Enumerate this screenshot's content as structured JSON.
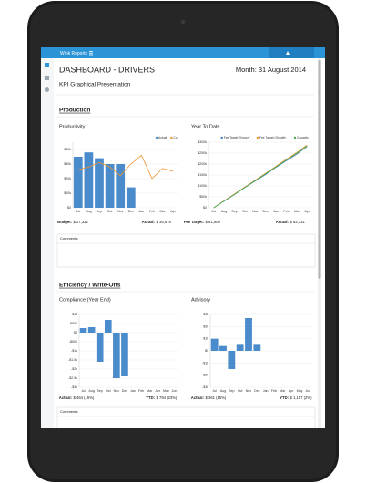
{
  "app": {
    "name": "Wink Reports"
  },
  "header": {
    "title": "DASHBOARD - DRIVERS",
    "month": "Month: 31 August 2014",
    "subtitle": "KPI Graphical Presentation"
  },
  "sections": [
    "Production",
    "Efficiency / Write-Offs"
  ],
  "comments_label": "Comments:",
  "chart_data": [
    {
      "type": "bar",
      "title": "Productivity",
      "categories": [
        "Jul",
        "Aug",
        "Sep",
        "Oct",
        "Nov",
        "Dec",
        "Jan",
        "Feb",
        "Mar",
        "Apr"
      ],
      "series": [
        {
          "name": "Actual",
          "color": "#4a8ccb",
          "kind": "bar",
          "values": [
            35000,
            38000,
            34000,
            30000,
            30000,
            14000,
            null,
            null,
            null,
            null
          ]
        },
        {
          "name": "Co",
          "color": "#f0922e",
          "kind": "line",
          "values": [
            26000,
            28000,
            31000,
            28000,
            22000,
            30000,
            36000,
            20000,
            27000,
            25000
          ]
        }
      ],
      "ylim": [
        0,
        45000
      ],
      "yticks": [
        {
          "value": 0,
          "label": "$0"
        },
        {
          "value": 10000,
          "label": "$10k"
        },
        {
          "value": 20000,
          "label": "$20k"
        },
        {
          "value": 30000,
          "label": "$30k"
        },
        {
          "value": 40000,
          "label": "$40k"
        }
      ],
      "grid": true,
      "legend": "top-right",
      "footer": [
        {
          "label": "Budget:",
          "value": "$ 27,332"
        },
        {
          "label": "Actual:",
          "value": "$ 36,676"
        }
      ]
    },
    {
      "type": "line",
      "title": "Year To Date",
      "categories": [
        "Jul",
        "Aug",
        "Sep",
        "Oct",
        "Nov",
        "Dec",
        "Jan",
        "Feb",
        "Mar",
        "Apr"
      ],
      "series": [
        {
          "name": "Fee Target \"Known\"",
          "color": "#3a7fc1",
          "kind": "line",
          "values": [
            0,
            30000,
            60000,
            92000,
            122000,
            152000,
            185000,
            215000,
            245000,
            280000
          ]
        },
        {
          "name": "Fee Target (Growth)",
          "color": "#f0922e",
          "kind": "line",
          "values": [
            0,
            32000,
            63000,
            95000,
            126000,
            158000,
            190000,
            222000,
            253000,
            287000
          ]
        },
        {
          "name": "Capacity",
          "color": "#4caf50",
          "kind": "line",
          "values": [
            0,
            31000,
            61000,
            93000,
            124000,
            155000,
            187000,
            218000,
            249000,
            283000
          ]
        }
      ],
      "ylim": [
        0,
        300000
      ],
      "yticks": [
        {
          "value": 0,
          "label": "$0"
        },
        {
          "value": 50000,
          "label": "$50k"
        },
        {
          "value": 100000,
          "label": "$100k"
        },
        {
          "value": 150000,
          "label": "$150k"
        },
        {
          "value": 200000,
          "label": "$200k"
        },
        {
          "value": 250000,
          "label": "$250k"
        },
        {
          "value": 300000,
          "label": "$300k"
        }
      ],
      "grid": true,
      "legend": "top-right",
      "footer": [
        {
          "label": "Fee Target:",
          "value": "$ 61,900"
        },
        {
          "label": "Actual:",
          "value": "$ 62,131"
        }
      ]
    },
    {
      "type": "bar",
      "title": "Compliance (Year End)",
      "categories": [
        "Jul",
        "Aug",
        "Sep",
        "Oct",
        "Nov",
        "Dec",
        "Jan",
        "Feb",
        "Mar",
        "Apr",
        "May",
        "Jun"
      ],
      "series": [
        {
          "color": "#4a8ccb",
          "kind": "bar",
          "values": [
            250,
            300,
            -1600,
            700,
            -2500,
            -2400,
            null,
            null,
            null,
            null,
            null,
            null
          ]
        }
      ],
      "ylim": [
        -3000,
        1000
      ],
      "yticks": [
        {
          "value": 1000,
          "label": "$1k"
        },
        {
          "value": 500,
          "label": "$500"
        },
        {
          "value": 0,
          "label": "$0"
        },
        {
          "value": -500,
          "label": "-$500"
        },
        {
          "value": -1000,
          "label": "-$1k"
        },
        {
          "value": -1500,
          "label": "-$1.5k"
        },
        {
          "value": -2000,
          "label": "-$2k"
        },
        {
          "value": -2500,
          "label": "-$2.5k"
        },
        {
          "value": -3000,
          "label": "-$3k"
        }
      ],
      "grid": true,
      "footer": [
        {
          "label": "Actual:",
          "value": "$ 464 (15%)"
        },
        {
          "label": "YTD:",
          "value": "$ 794 (23%)"
        }
      ]
    },
    {
      "type": "bar",
      "title": "Advisory",
      "categories": [
        "Jul",
        "Aug",
        "Sep",
        "Oct",
        "Nov",
        "Dec",
        "Jan",
        "Feb",
        "Mar",
        "Apr",
        "May",
        "Jun"
      ],
      "series": [
        {
          "color": "#4a8ccb",
          "kind": "bar",
          "values": [
            1000,
            400,
            -1500,
            500,
            2700,
            500,
            null,
            null,
            null,
            null,
            null,
            null
          ]
        }
      ],
      "ylim": [
        -3000,
        3000
      ],
      "yticks": [
        {
          "value": 3000,
          "label": "$3k"
        },
        {
          "value": 2000,
          "label": "$2k"
        },
        {
          "value": 1000,
          "label": "$1k"
        },
        {
          "value": 0,
          "label": "$0"
        },
        {
          "value": -1000,
          "label": "-$1k"
        },
        {
          "value": -2000,
          "label": "-$2k"
        },
        {
          "value": -3000,
          "label": "-$3k"
        }
      ],
      "grid": true,
      "footer": [
        {
          "label": "Actual:",
          "value": "$ 361 (15%)"
        },
        {
          "label": "YTD:",
          "value": "$ 1,157 (2%)"
        }
      ]
    }
  ]
}
